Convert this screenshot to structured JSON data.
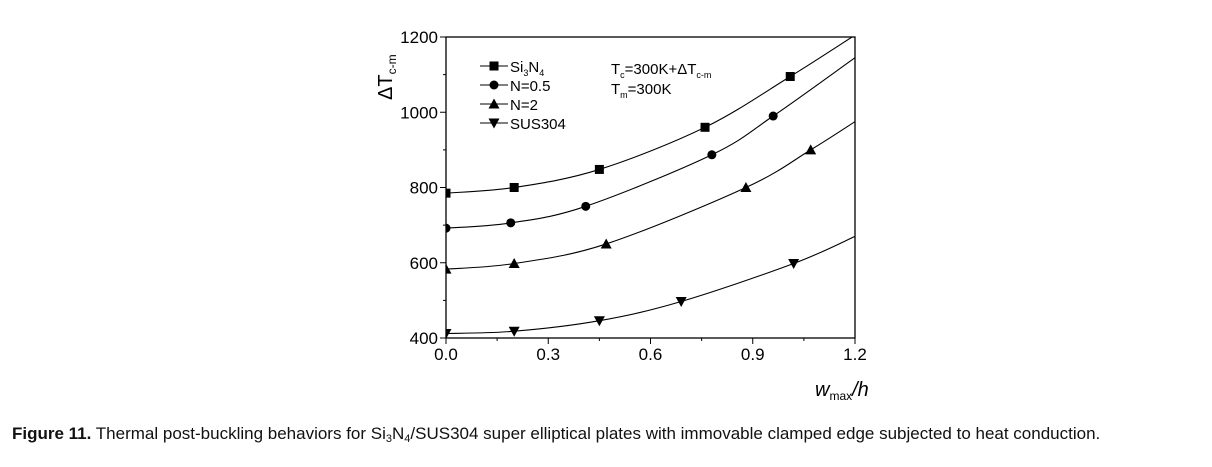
{
  "chart_data": {
    "type": "line",
    "xlabel": {
      "main": "w",
      "sub": "max",
      "tail": "/h"
    },
    "ylabel": {
      "main": "ΔT",
      "sub": "c-m"
    },
    "xlim": [
      0,
      1.2
    ],
    "ylim": [
      400,
      1200
    ],
    "xticks": [
      "0.0",
      "0.3",
      "0.6",
      "0.9",
      "1.2"
    ],
    "xtick_values": [
      0,
      0.3,
      0.6,
      0.9,
      1.2
    ],
    "yticks": [
      "400",
      "600",
      "800",
      "1000",
      "1200"
    ],
    "ytick_values": [
      400,
      600,
      800,
      1000,
      1200
    ],
    "grid": false,
    "legend_position": "top-left",
    "annotations": [
      {
        "parts": [
          [
            "T",
            ""
          ],
          [
            "c",
            "sub"
          ],
          [
            "=300K+ΔT",
            ""
          ],
          [
            "c-m",
            "sub"
          ]
        ]
      },
      {
        "parts": [
          [
            "T",
            ""
          ],
          [
            "m",
            "sub"
          ],
          [
            "=300K",
            ""
          ]
        ]
      }
    ],
    "series": [
      {
        "name": "Si3N4",
        "legend_parts": [
          [
            "Si",
            ""
          ],
          [
            "3",
            "sub"
          ],
          [
            "N",
            ""
          ],
          [
            "4",
            "sub"
          ]
        ],
        "marker": "square",
        "points": [
          [
            0,
            785
          ],
          [
            0.2,
            800
          ],
          [
            0.45,
            848
          ],
          [
            0.76,
            960
          ],
          [
            1.01,
            1095
          ]
        ],
        "curve_end": [
          1.2,
          1205
        ]
      },
      {
        "name": "N=0.5",
        "legend_parts": [
          [
            "N=0.5",
            ""
          ]
        ],
        "marker": "circle",
        "points": [
          [
            0,
            692
          ],
          [
            0.19,
            706
          ],
          [
            0.41,
            750
          ],
          [
            0.78,
            887
          ],
          [
            0.96,
            990
          ]
        ],
        "curve_end": [
          1.2,
          1145
        ]
      },
      {
        "name": "N=2",
        "legend_parts": [
          [
            "N=2",
            ""
          ]
        ],
        "marker": "triangle-up",
        "points": [
          [
            0,
            583
          ],
          [
            0.2,
            598
          ],
          [
            0.47,
            650
          ],
          [
            0.88,
            800
          ],
          [
            1.07,
            900
          ]
        ],
        "curve_end": [
          1.2,
          975
        ]
      },
      {
        "name": "SUS304",
        "legend_parts": [
          [
            "SUS304",
            ""
          ]
        ],
        "marker": "triangle-down",
        "points": [
          [
            0,
            412
          ],
          [
            0.2,
            418
          ],
          [
            0.45,
            446
          ],
          [
            0.69,
            497
          ],
          [
            1.02,
            598
          ]
        ],
        "curve_end": [
          1.2,
          670
        ]
      }
    ]
  },
  "caption": {
    "label": "Figure 11.",
    "text_parts": [
      [
        "Thermal post-buckling behaviors for Si",
        ""
      ],
      [
        "3",
        "sub"
      ],
      [
        "N",
        ""
      ],
      [
        "4",
        "sub"
      ],
      [
        "/SUS304 super elliptical plates with immovable clamped edge subjected to heat conduction.",
        ""
      ]
    ]
  }
}
